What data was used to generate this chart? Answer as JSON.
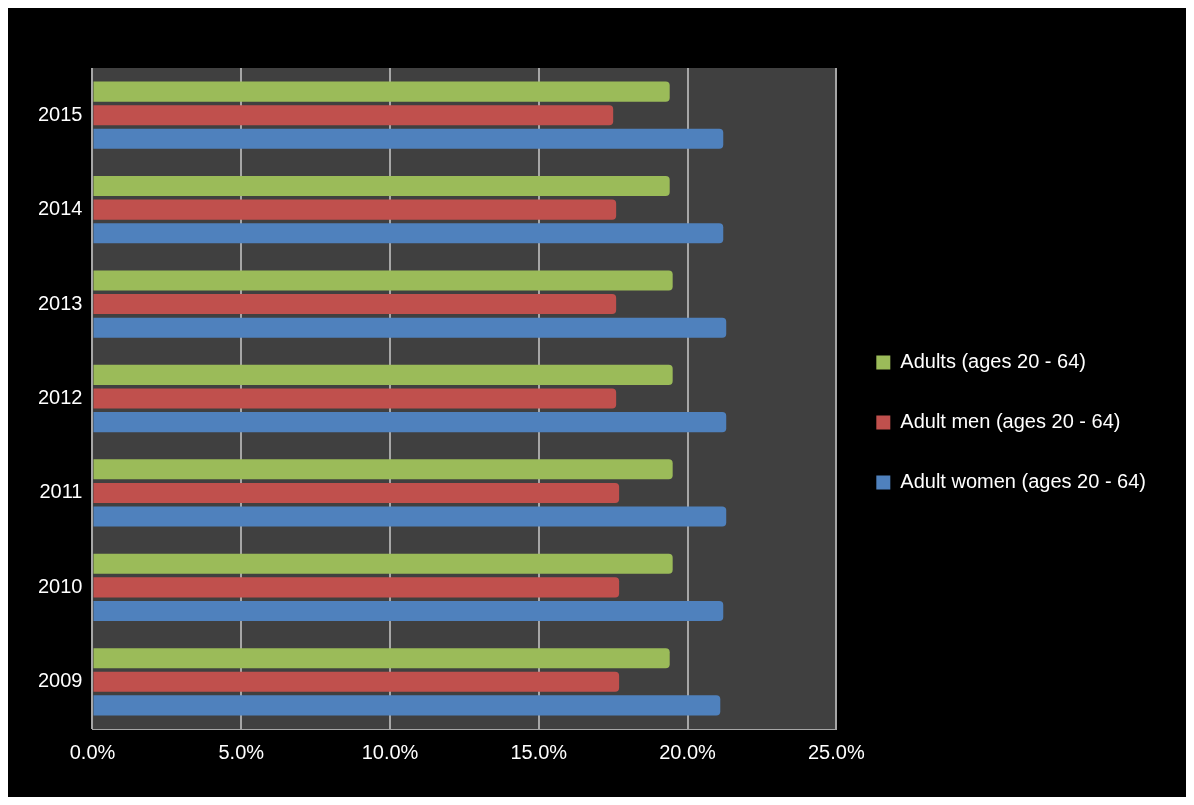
{
  "chart_data": {
    "type": "bar",
    "orientation": "horizontal",
    "categories": [
      "2015",
      "2014",
      "2013",
      "2012",
      "2011",
      "2010",
      "2009"
    ],
    "series": [
      {
        "name": "Adults (ages 20 - 64)",
        "color": "#9bbb59",
        "values": [
          19.4,
          19.4,
          19.5,
          19.5,
          19.5,
          19.5,
          19.4
        ]
      },
      {
        "name": "Adult men (ages 20 - 64)",
        "color": "#c0504d",
        "values": [
          17.5,
          17.6,
          17.6,
          17.6,
          17.7,
          17.7,
          17.7
        ]
      },
      {
        "name": "Adult women (ages 20 - 64)",
        "color": "#4f81bd",
        "values": [
          21.2,
          21.2,
          21.3,
          21.3,
          21.3,
          21.2,
          21.1
        ]
      }
    ],
    "xlim": [
      0,
      25
    ],
    "xticks": [
      {
        "value": 0,
        "label": "0.0%"
      },
      {
        "value": 5,
        "label": "5.0%"
      },
      {
        "value": 10,
        "label": "10.0%"
      },
      {
        "value": 15,
        "label": "15.0%"
      },
      {
        "value": 20,
        "label": "20.0%"
      },
      {
        "value": 25,
        "label": "25.0%"
      }
    ],
    "grid": "x",
    "legend": "right"
  }
}
